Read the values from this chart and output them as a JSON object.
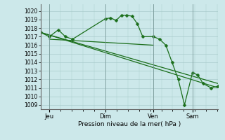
{
  "background_color": "#cce8ea",
  "grid_color": "#aacccc",
  "line_color": "#1a6e1a",
  "xlabel_text": "Pression niveau de la mer( hPa )",
  "ylim": [
    1008.5,
    1020.8
  ],
  "yticks": [
    1009,
    1010,
    1011,
    1012,
    1013,
    1014,
    1015,
    1016,
    1017,
    1018,
    1019,
    1020
  ],
  "xtick_labels": [
    "Jeu",
    "Dim",
    "Ven",
    "Sam"
  ],
  "xtick_positions": [
    0.05,
    0.365,
    0.635,
    0.855
  ],
  "xlim": [
    0,
    1.0
  ],
  "series_main": {
    "x": [
      0.0,
      0.05,
      0.1,
      0.14,
      0.18,
      0.365,
      0.395,
      0.425,
      0.455,
      0.485,
      0.515,
      0.545,
      0.575,
      0.635,
      0.67,
      0.705,
      0.74,
      0.775,
      0.81,
      0.855,
      0.885,
      0.915,
      0.96,
      1.0
    ],
    "y": [
      1017.5,
      1017.0,
      1017.8,
      1017.0,
      1016.7,
      1019.1,
      1019.2,
      1018.9,
      1019.5,
      1019.5,
      1019.4,
      1018.5,
      1017.0,
      1017.0,
      1016.7,
      1016.0,
      1014.0,
      1012.0,
      1009.0,
      1012.8,
      1012.5,
      1011.5,
      1011.0,
      1011.2
    ],
    "markersize": 2.5
  },
  "trend_lines": [
    {
      "x": [
        0.0,
        1.0
      ],
      "y": [
        1017.5,
        1011.0
      ]
    },
    {
      "x": [
        0.0,
        1.0
      ],
      "y": [
        1017.5,
        1011.5
      ]
    },
    {
      "x": [
        0.05,
        0.635
      ],
      "y": [
        1016.7,
        1016.0
      ]
    }
  ]
}
